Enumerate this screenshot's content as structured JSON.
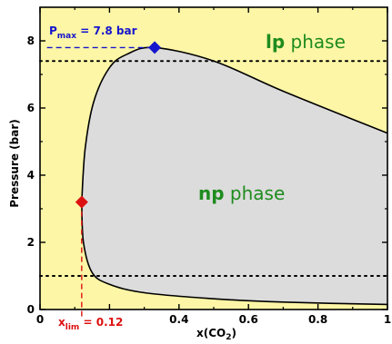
{
  "colors": {
    "lp_region": "#fdf6a6",
    "np_region": "#dcdcdc",
    "phase_label": "#1e8c1e",
    "pmax": "#1515cc",
    "xlim": "#dd1111"
  },
  "chart_data": {
    "type": "area",
    "xlabel_main": "x(CO",
    "xlabel_sub": "2",
    "xlabel_close": ")",
    "ylabel": "Pressure (bar)",
    "xlim": [
      0,
      1
    ],
    "ylim": [
      0,
      9.0
    ],
    "x_ticks": [
      0,
      0.2,
      0.4,
      0.6,
      0.8,
      1
    ],
    "x_tick_labels": [
      "0",
      "",
      "0.4",
      "0.6",
      "0.8",
      "1"
    ],
    "y_ticks": [
      0,
      2,
      4,
      6,
      8
    ],
    "y_tick_labels": [
      "0",
      "2",
      "4",
      "6",
      "8"
    ],
    "regions": [
      {
        "name": "lp",
        "label_bold": "lp",
        "label_rest": " phase"
      },
      {
        "name": "np",
        "label_bold": "np",
        "label_rest": " phase"
      }
    ],
    "boundary_curve": {
      "upper_branch": [
        {
          "x": 0.12,
          "y": 3.2
        },
        {
          "x": 0.13,
          "y": 4.8
        },
        {
          "x": 0.155,
          "y": 6.2
        },
        {
          "x": 0.2,
          "y": 7.2
        },
        {
          "x": 0.25,
          "y": 7.6
        },
        {
          "x": 0.33,
          "y": 7.8
        },
        {
          "x": 0.5,
          "y": 7.4
        },
        {
          "x": 0.7,
          "y": 6.5
        },
        {
          "x": 1.0,
          "y": 5.25
        }
      ],
      "lower_branch": [
        {
          "x": 0.12,
          "y": 3.2
        },
        {
          "x": 0.125,
          "y": 2.0
        },
        {
          "x": 0.15,
          "y": 1.1
        },
        {
          "x": 0.2,
          "y": 0.75
        },
        {
          "x": 0.3,
          "y": 0.5
        },
        {
          "x": 0.5,
          "y": 0.32
        },
        {
          "x": 0.7,
          "y": 0.22
        },
        {
          "x": 1.0,
          "y": 0.15
        }
      ]
    },
    "reference_lines_y": [
      7.4,
      1.0
    ],
    "pmax": {
      "x": 0.33,
      "y": 7.8,
      "label_main": "P",
      "label_sub": "max",
      "label_value": " = 7.8 bar"
    },
    "xlim_point": {
      "x": 0.12,
      "y": 3.2,
      "label_main": "x",
      "label_sub": "lim",
      "label_value": " = 0.12"
    }
  }
}
